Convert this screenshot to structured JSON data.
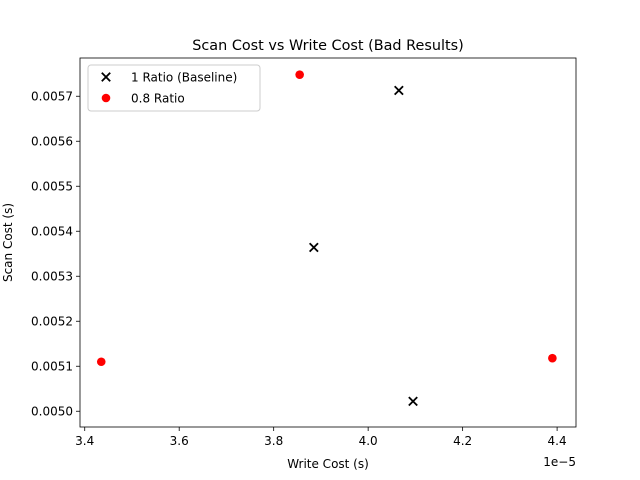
{
  "chart_data": {
    "type": "scatter",
    "title": "Scan Cost vs Write Cost (Bad Results)",
    "xlabel": "Write Cost (s)",
    "ylabel": "Scan Cost (s)",
    "x_offset_text": "1e−5",
    "x_scale_exponent": -5,
    "xlim": [
      3.39,
      4.44
    ],
    "ylim": [
      0.004965,
      0.005785
    ],
    "x_ticks": [
      3.4,
      3.6,
      3.8,
      4.0,
      4.2,
      4.4
    ],
    "x_tick_labels": [
      "3.4",
      "3.6",
      "3.8",
      "4.0",
      "4.2",
      "4.4"
    ],
    "y_ticks": [
      0.005,
      0.0051,
      0.0052,
      0.0053,
      0.0054,
      0.0055,
      0.0056,
      0.0057
    ],
    "y_tick_labels": [
      "0.0050",
      "0.0051",
      "0.0052",
      "0.0053",
      "0.0054",
      "0.0055",
      "0.0056",
      "0.0057"
    ],
    "grid": false,
    "legend_position": "top-left",
    "series": [
      {
        "name": "1 Ratio (Baseline)",
        "marker": "x",
        "color": "#000000",
        "points": [
          {
            "x": 4.065,
            "y": 0.005713
          },
          {
            "x": 3.885,
            "y": 0.005364
          },
          {
            "x": 4.095,
            "y": 0.005022
          }
        ]
      },
      {
        "name": "0.8 Ratio",
        "marker": "circle",
        "color": "#ff0000",
        "points": [
          {
            "x": 3.855,
            "y": 0.005748
          },
          {
            "x": 3.435,
            "y": 0.00511
          },
          {
            "x": 4.39,
            "y": 0.005118
          }
        ]
      }
    ]
  }
}
